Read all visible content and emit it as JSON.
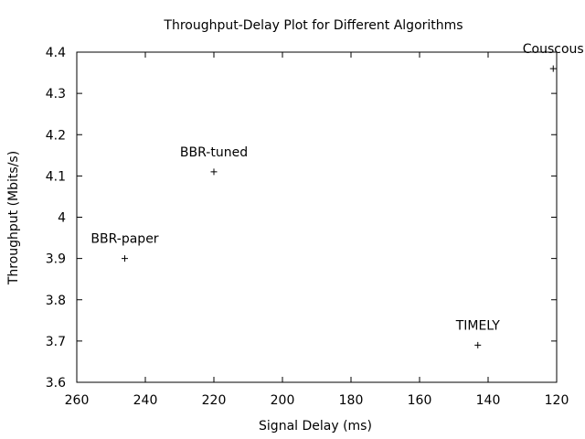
{
  "chart_data": {
    "type": "scatter",
    "title": "Throughput-Delay Plot for Different Algorithms",
    "xlabel": "Signal Delay (ms)",
    "ylabel": "Throughput (Mbits/s)",
    "xlim": [
      260,
      120
    ],
    "ylim": [
      3.6,
      4.4
    ],
    "x_reversed": true,
    "x_ticks": [
      260,
      240,
      220,
      200,
      180,
      160,
      140,
      120
    ],
    "y_ticks": [
      3.6,
      3.7,
      3.8,
      3.9,
      4.0,
      4.1,
      4.2,
      4.3,
      4.4
    ],
    "x_tick_labels": [
      "260",
      "240",
      "220",
      "200",
      "180",
      "160",
      "140",
      "120"
    ],
    "y_tick_labels": [
      "3.6",
      "3.7",
      "3.8",
      "3.9",
      "4",
      "4.1",
      "4.2",
      "4.3",
      "4.4"
    ],
    "grid": false,
    "marker": "+",
    "points": [
      {
        "label": "BBR-paper",
        "x": 246,
        "y": 3.9
      },
      {
        "label": "BBR-tuned",
        "x": 220,
        "y": 4.11
      },
      {
        "label": "TIMELY",
        "x": 143,
        "y": 3.69
      },
      {
        "label": "Couscous",
        "x": 121,
        "y": 4.36
      }
    ]
  }
}
